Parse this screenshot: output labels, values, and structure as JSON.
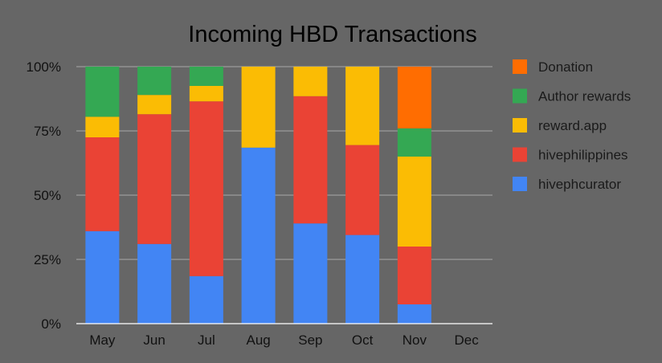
{
  "chart_data": {
    "type": "bar",
    "stacked": true,
    "percent_stacked": true,
    "title": "Incoming HBD Transactions",
    "xlabel": "",
    "ylabel": "",
    "categories": [
      "May",
      "Jun",
      "Jul",
      "Aug",
      "Sep",
      "Oct",
      "Nov",
      "Dec"
    ],
    "y_ticks": [
      "0%",
      "25%",
      "50%",
      "75%",
      "100%"
    ],
    "ylim": [
      0,
      100
    ],
    "grid": true,
    "legend_position": "right",
    "legend_order": [
      "Donation",
      "Author rewards",
      "reward.app",
      "hivephilippines",
      "hivephcurator"
    ],
    "series": [
      {
        "name": "hivephcurator",
        "color": "#4285f4",
        "values": [
          36,
          31,
          18.5,
          68.5,
          39,
          34.5,
          7.5,
          0
        ]
      },
      {
        "name": "hivephilippines",
        "color": "#ea4335",
        "values": [
          36.5,
          50.5,
          68,
          0,
          49.5,
          35,
          22.5,
          0
        ]
      },
      {
        "name": "reward.app",
        "color": "#fbbc04",
        "values": [
          8,
          7.5,
          6,
          31.5,
          11.5,
          30.5,
          35,
          0
        ]
      },
      {
        "name": "Author rewards",
        "color": "#34a853",
        "values": [
          19.5,
          11,
          7.5,
          0,
          0,
          0,
          11,
          0
        ]
      },
      {
        "name": "Donation",
        "color": "#ff6d01",
        "values": [
          0,
          0,
          0,
          0,
          0,
          0,
          24,
          0
        ]
      }
    ]
  }
}
